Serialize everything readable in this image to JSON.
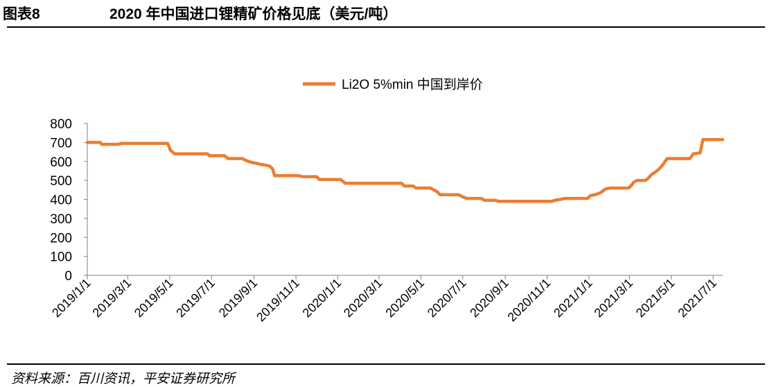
{
  "header": {
    "figure_no": "图表8",
    "title": "2020 年中国进口锂精矿价格见底（美元/吨）"
  },
  "footer": {
    "source": "资料来源：百川资讯，平安证券研究所"
  },
  "chart_data": {
    "type": "line",
    "title": "",
    "xlabel": "",
    "ylabel": "",
    "ylim": [
      0,
      800
    ],
    "yticks": [
      0,
      100,
      200,
      300,
      400,
      500,
      600,
      700,
      800
    ],
    "xlim": [
      "2019-01-01",
      "2021-07-15"
    ],
    "xtick_labels": [
      "2019/1/1",
      "2019/3/1",
      "2019/5/1",
      "2019/7/1",
      "2019/9/1",
      "2019/11/1",
      "2020/1/1",
      "2020/3/1",
      "2020/5/1",
      "2020/7/1",
      "2020/9/1",
      "2020/11/1",
      "2021/1/1",
      "2021/3/1",
      "2021/5/1",
      "2021/7/1"
    ],
    "xtick_dates": [
      "2019-01-01",
      "2019-03-01",
      "2019-05-01",
      "2019-07-01",
      "2019-09-01",
      "2019-11-01",
      "2020-01-01",
      "2020-03-01",
      "2020-05-01",
      "2020-07-01",
      "2020-09-01",
      "2020-11-01",
      "2021-01-01",
      "2021-03-01",
      "2021-05-01",
      "2021-07-01"
    ],
    "grid": false,
    "legend_position": "top-center",
    "series": [
      {
        "name": "Li2O 5%min 中国到岸价",
        "color": "#ED7D31",
        "points": [
          [
            "2019-01-01",
            700
          ],
          [
            "2019-01-20",
            700
          ],
          [
            "2019-01-22",
            690
          ],
          [
            "2019-02-15",
            690
          ],
          [
            "2019-02-20",
            695
          ],
          [
            "2019-04-28",
            695
          ],
          [
            "2019-05-02",
            660
          ],
          [
            "2019-05-08",
            640
          ],
          [
            "2019-06-25",
            640
          ],
          [
            "2019-06-28",
            630
          ],
          [
            "2019-07-20",
            630
          ],
          [
            "2019-07-25",
            615
          ],
          [
            "2019-08-15",
            615
          ],
          [
            "2019-08-20",
            605
          ],
          [
            "2019-08-28",
            595
          ],
          [
            "2019-09-05",
            590
          ],
          [
            "2019-09-10",
            585
          ],
          [
            "2019-09-18",
            580
          ],
          [
            "2019-09-24",
            575
          ],
          [
            "2019-09-28",
            560
          ],
          [
            "2019-10-01",
            525
          ],
          [
            "2019-11-05",
            525
          ],
          [
            "2019-11-10",
            520
          ],
          [
            "2019-12-01",
            520
          ],
          [
            "2019-12-05",
            505
          ],
          [
            "2020-01-05",
            505
          ],
          [
            "2020-01-12",
            485
          ],
          [
            "2020-04-03",
            485
          ],
          [
            "2020-04-07",
            470
          ],
          [
            "2020-04-20",
            470
          ],
          [
            "2020-04-24",
            460
          ],
          [
            "2020-05-15",
            460
          ],
          [
            "2020-05-20",
            450
          ],
          [
            "2020-05-25",
            440
          ],
          [
            "2020-05-29",
            425
          ],
          [
            "2020-06-25",
            425
          ],
          [
            "2020-06-30",
            415
          ],
          [
            "2020-07-07",
            405
          ],
          [
            "2020-07-28",
            405
          ],
          [
            "2020-08-02",
            395
          ],
          [
            "2020-08-18",
            395
          ],
          [
            "2020-08-22",
            390
          ],
          [
            "2020-11-08",
            390
          ],
          [
            "2020-11-12",
            395
          ],
          [
            "2020-11-20",
            400
          ],
          [
            "2020-11-27",
            405
          ],
          [
            "2020-12-30",
            405
          ],
          [
            "2021-01-03",
            420
          ],
          [
            "2021-01-10",
            425
          ],
          [
            "2021-01-18",
            435
          ],
          [
            "2021-01-25",
            455
          ],
          [
            "2021-02-01",
            460
          ],
          [
            "2021-02-28",
            460
          ],
          [
            "2021-03-04",
            475
          ],
          [
            "2021-03-07",
            490
          ],
          [
            "2021-03-12",
            500
          ],
          [
            "2021-03-24",
            500
          ],
          [
            "2021-03-28",
            510
          ],
          [
            "2021-04-02",
            530
          ],
          [
            "2021-04-08",
            545
          ],
          [
            "2021-04-13",
            560
          ],
          [
            "2021-04-17",
            575
          ],
          [
            "2021-04-21",
            595
          ],
          [
            "2021-04-25",
            615
          ],
          [
            "2021-05-28",
            615
          ],
          [
            "2021-06-02",
            640
          ],
          [
            "2021-06-12",
            645
          ],
          [
            "2021-06-16",
            715
          ],
          [
            "2021-07-15",
            715
          ]
        ]
      }
    ]
  }
}
